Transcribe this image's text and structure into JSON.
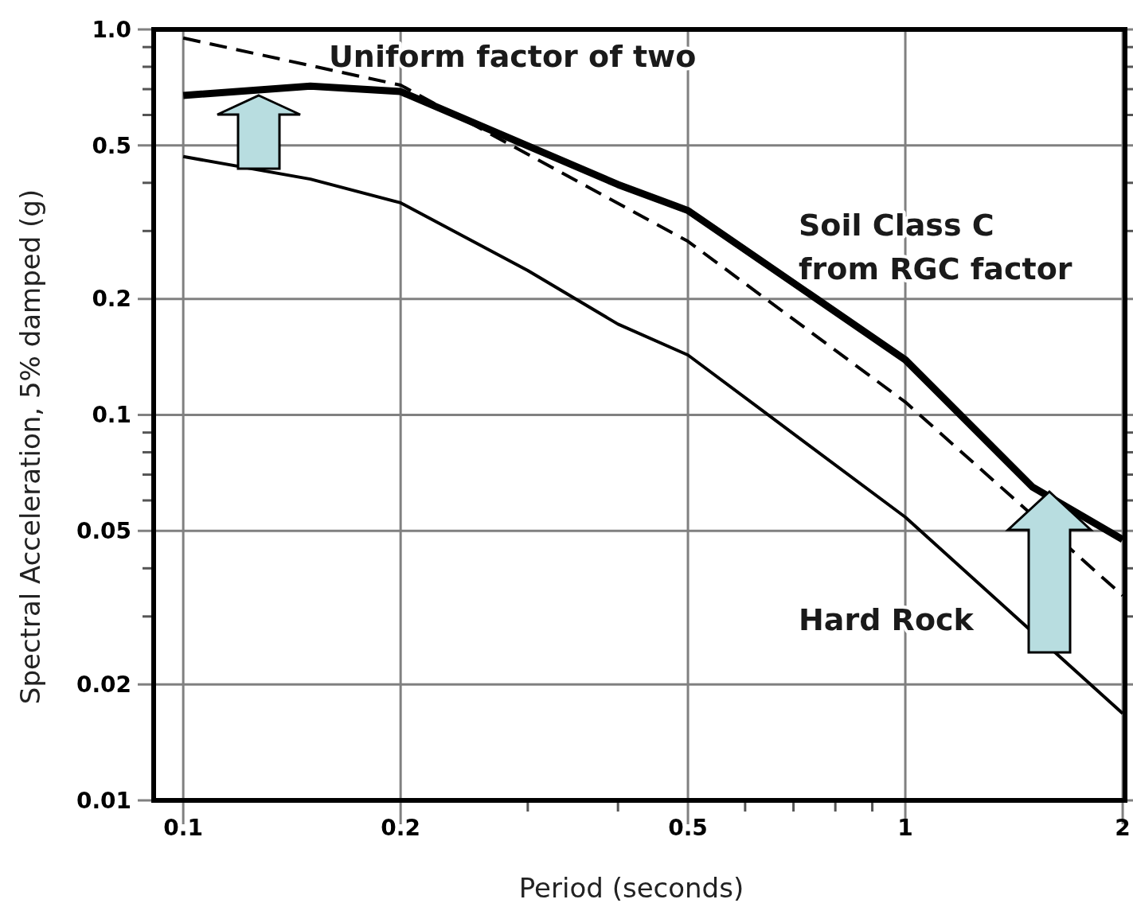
{
  "chart_data": {
    "type": "line",
    "xlabel": "Period (seconds)",
    "ylabel": "Spectral Acceleration, 5% damped (g)",
    "log": "xy",
    "grid": true,
    "legend": false,
    "marker": "none",
    "xlim": [
      0.091,
      2.015
    ],
    "ylim": [
      0.01,
      1.0
    ],
    "xticks": [
      0.1,
      0.2,
      {
        "value": 0.3,
        "label": null
      },
      {
        "value": 0.4,
        "label": null
      },
      0.5,
      {
        "value": 0.6,
        "label": null
      },
      {
        "value": 0.7,
        "label": null
      },
      {
        "value": 0.8,
        "label": null
      },
      {
        "value": 0.9,
        "label": null
      },
      1,
      2
    ],
    "yticks": [
      0.01,
      0.02,
      {
        "value": 0.03,
        "label": null
      },
      {
        "value": 0.04,
        "label": null
      },
      0.05,
      {
        "value": 0.06,
        "label": null
      },
      {
        "value": 0.07,
        "label": null
      },
      {
        "value": 0.08,
        "label": null
      },
      {
        "value": 0.09,
        "label": null
      },
      0.1,
      0.2,
      {
        "value": 0.3,
        "label": null
      },
      {
        "value": 0.4,
        "label": null
      },
      0.5,
      {
        "value": 0.6,
        "label": null
      },
      {
        "value": 0.7,
        "label": null
      },
      {
        "value": 0.8,
        "label": null
      },
      {
        "value": 0.9,
        "label": null
      },
      {
        "value": 1.0,
        "label": "1.0"
      }
    ],
    "series": [
      {
        "name": "Soil Class C from RGC factor",
        "color": "#000000",
        "line_style": "solid",
        "x": [
          0.1,
          0.15,
          0.2,
          0.4,
          0.5,
          1,
          1.5,
          2
        ],
        "values": [
          0.674,
          0.713,
          0.69,
          0.396,
          0.339,
          0.139,
          0.065,
          0.0475
        ]
      },
      {
        "name": "Uniform factor of two",
        "color": "#000000",
        "line_style": "dashed",
        "x": [
          0.1,
          0.2,
          0.5,
          1,
          2
        ],
        "values": [
          0.95,
          0.717,
          0.282,
          0.108,
          0.034
        ]
      },
      {
        "name": "Hard Rock",
        "color": "#000000",
        "line_style": "solid",
        "x": [
          0.1,
          0.15,
          0.2,
          0.3,
          0.4,
          0.5,
          1,
          2
        ],
        "values": [
          0.468,
          0.409,
          0.355,
          0.237,
          0.172,
          0.143,
          0.0543,
          0.0168
        ]
      }
    ]
  }
}
